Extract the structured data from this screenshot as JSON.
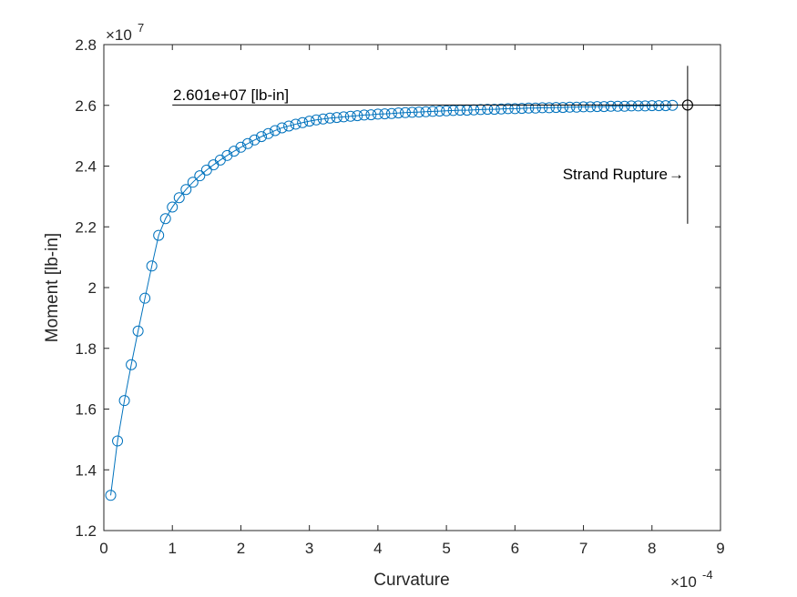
{
  "chart_data": {
    "type": "line",
    "marker": "circle",
    "xlabel": "Curvature",
    "ylabel": "Moment [lb-in]",
    "x_exponent_label": "×10",
    "x_exponent": "-4",
    "y_exponent_label": "×10",
    "y_exponent": "7",
    "xlim": [
      0,
      9
    ],
    "ylim": [
      1.2,
      2.8
    ],
    "xticks": [
      "0",
      "1",
      "2",
      "3",
      "4",
      "5",
      "6",
      "7",
      "8",
      "9"
    ],
    "yticks": [
      "1.2",
      "1.4",
      "1.6",
      "1.8",
      "2",
      "2.2",
      "2.4",
      "2.6",
      "2.8"
    ],
    "colors": {
      "series": "#0072bd",
      "annotation": "#000000",
      "axes": "#262626"
    },
    "series": [
      {
        "x": [
          0.1,
          0.2,
          0.3,
          0.4,
          0.5,
          0.6,
          0.7,
          0.8,
          0.9,
          1.0,
          1.1,
          1.2,
          1.3,
          1.4,
          1.5,
          1.6,
          1.7,
          1.8,
          1.9,
          2.0,
          2.1,
          2.2,
          2.3,
          2.4,
          2.5,
          2.6,
          2.7,
          2.8,
          2.9,
          3.0,
          3.1,
          3.2,
          3.3,
          3.4,
          3.5,
          3.6,
          3.7,
          3.8,
          3.9,
          4.0,
          4.1,
          4.2,
          4.3,
          4.4,
          4.5,
          4.6,
          4.7,
          4.8,
          4.9,
          5.0,
          5.1,
          5.2,
          5.3,
          5.4,
          5.5,
          5.6,
          5.7,
          5.8,
          5.9,
          6.0,
          6.1,
          6.2,
          6.3,
          6.4,
          6.5,
          6.6,
          6.7,
          6.8,
          6.9,
          7.0,
          7.1,
          7.2,
          7.3,
          7.4,
          7.5,
          7.6,
          7.7,
          7.8,
          7.9,
          8.0,
          8.1,
          8.2,
          8.3
        ],
        "y": [
          1.316,
          1.495,
          1.628,
          1.746,
          1.857,
          1.965,
          2.071,
          2.172,
          2.227,
          2.265,
          2.296,
          2.323,
          2.347,
          2.368,
          2.387,
          2.404,
          2.42,
          2.435,
          2.449,
          2.462,
          2.474,
          2.486,
          2.497,
          2.507,
          2.517,
          2.526,
          2.532,
          2.538,
          2.543,
          2.548,
          2.552,
          2.555,
          2.558,
          2.56,
          2.562,
          2.564,
          2.566,
          2.568,
          2.569,
          2.571,
          2.572,
          2.573,
          2.575,
          2.576,
          2.577,
          2.578,
          2.579,
          2.58,
          2.581,
          2.582,
          2.583,
          2.584,
          2.584,
          2.585,
          2.586,
          2.587,
          2.587,
          2.588,
          2.589,
          2.589,
          2.59,
          2.591,
          2.591,
          2.592,
          2.592,
          2.593,
          2.593,
          2.594,
          2.594,
          2.595,
          2.595,
          2.596,
          2.596,
          2.597,
          2.597,
          2.597,
          2.598,
          2.598,
          2.598,
          2.599,
          2.599,
          2.599,
          2.6
        ]
      }
    ],
    "annotations": {
      "moment_label": "2.601e+07 [lb-in]",
      "moment_value": 2.601,
      "moment_line_x": [
        1.0,
        9.0
      ],
      "rupture_label": "Strand Rupture",
      "rupture_arrow": "→",
      "rupture_point": {
        "x": 8.52,
        "y": 2.601
      },
      "rupture_vline_y": [
        2.21,
        2.73
      ]
    }
  }
}
